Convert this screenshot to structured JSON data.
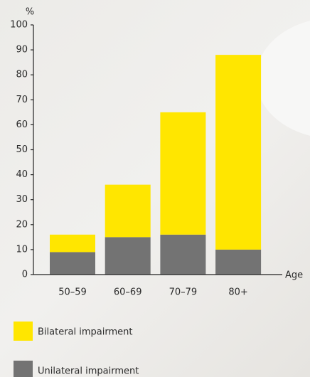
{
  "chart_data": {
    "type": "bar",
    "stacked": true,
    "y_axis_label": "%",
    "x_axis_label": "Age",
    "categories": [
      "50–59",
      "60–69",
      "70–79",
      "80+"
    ],
    "series": [
      {
        "name": "Bilateral impairment",
        "color": "#ffe600",
        "values": [
          7,
          21,
          49,
          78
        ]
      },
      {
        "name": "Unilateral impairment",
        "color": "#737373",
        "values": [
          9,
          15,
          16,
          10
        ]
      }
    ],
    "ylim": [
      0,
      100
    ],
    "yticks": [
      0,
      10,
      20,
      30,
      40,
      50,
      60,
      70,
      80,
      90,
      100
    ]
  }
}
